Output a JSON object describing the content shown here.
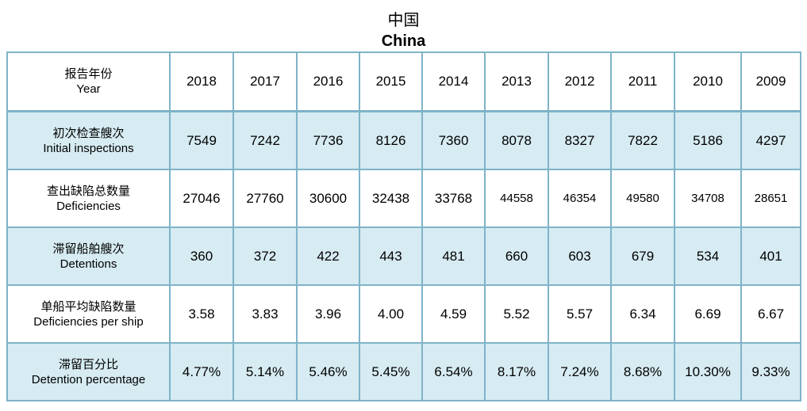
{
  "title_cn": "中国",
  "title_en": "China",
  "header": {
    "label_cn": "报告年份",
    "label_en": "Year",
    "years": [
      "2018",
      "2017",
      "2016",
      "2015",
      "2014",
      "2013",
      "2012",
      "2011",
      "2010",
      "2009"
    ]
  },
  "rows": [
    {
      "label_cn": "初次检查艘次",
      "label_en": "Initial inspections",
      "values": [
        "7549",
        "7242",
        "7736",
        "8126",
        "7360",
        "8078",
        "8327",
        "7822",
        "5186",
        "4297"
      ]
    },
    {
      "label_cn": "查出缺陷总数量",
      "label_en": "Deficiencies",
      "values": [
        "27046",
        "27760",
        "30600",
        "32438",
        "33768",
        "44558",
        "46354",
        "49580",
        "34708",
        "28651"
      ]
    },
    {
      "label_cn": "滞留船舶艘次",
      "label_en": "Detentions",
      "values": [
        "360",
        "372",
        "422",
        "443",
        "481",
        "660",
        "603",
        "679",
        "534",
        "401"
      ]
    },
    {
      "label_cn": "单船平均缺陷数量",
      "label_en": "Deficiencies per ship",
      "values": [
        "3.58",
        "3.83",
        "3.96",
        "4.00",
        "4.59",
        "5.52",
        "5.57",
        "6.34",
        "6.69",
        "6.67"
      ]
    },
    {
      "label_cn": "滞留百分比",
      "label_en": "Detention percentage",
      "values": [
        "4.77%",
        "5.14%",
        "5.46%",
        "5.45%",
        "6.54%",
        "8.17%",
        "7.24%",
        "8.68%",
        "10.30%",
        "9.33%"
      ]
    }
  ],
  "colors": {
    "border": "#7fb3c8",
    "shaded_row": "#d6ebf2"
  }
}
